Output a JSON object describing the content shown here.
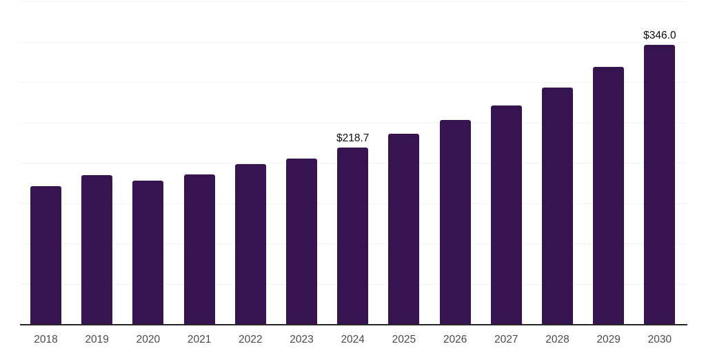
{
  "chart_data": {
    "type": "bar",
    "title": "",
    "xlabel": "",
    "ylabel": "",
    "categories": [
      "2018",
      "2019",
      "2020",
      "2021",
      "2022",
      "2023",
      "2024",
      "2025",
      "2026",
      "2027",
      "2028",
      "2029",
      "2030"
    ],
    "values": [
      171.0,
      184.5,
      178.0,
      185.5,
      198.5,
      205.5,
      218.7,
      235.5,
      253.0,
      271.0,
      293.0,
      318.5,
      346.0
    ],
    "ylim": [
      0,
      400
    ],
    "gridline_step": 50,
    "grid": "horizontal",
    "legend": "none",
    "annotations": [
      {
        "category": "2024",
        "text": "$218.7"
      },
      {
        "category": "2030",
        "text": "$346.0"
      }
    ],
    "colors": {
      "bar": "#361450",
      "grid": "#f1f1f4",
      "axis": "#242424",
      "tick_label": "#4a4a4a",
      "data_label": "#0d0d0d",
      "background": "#ffffff"
    }
  }
}
